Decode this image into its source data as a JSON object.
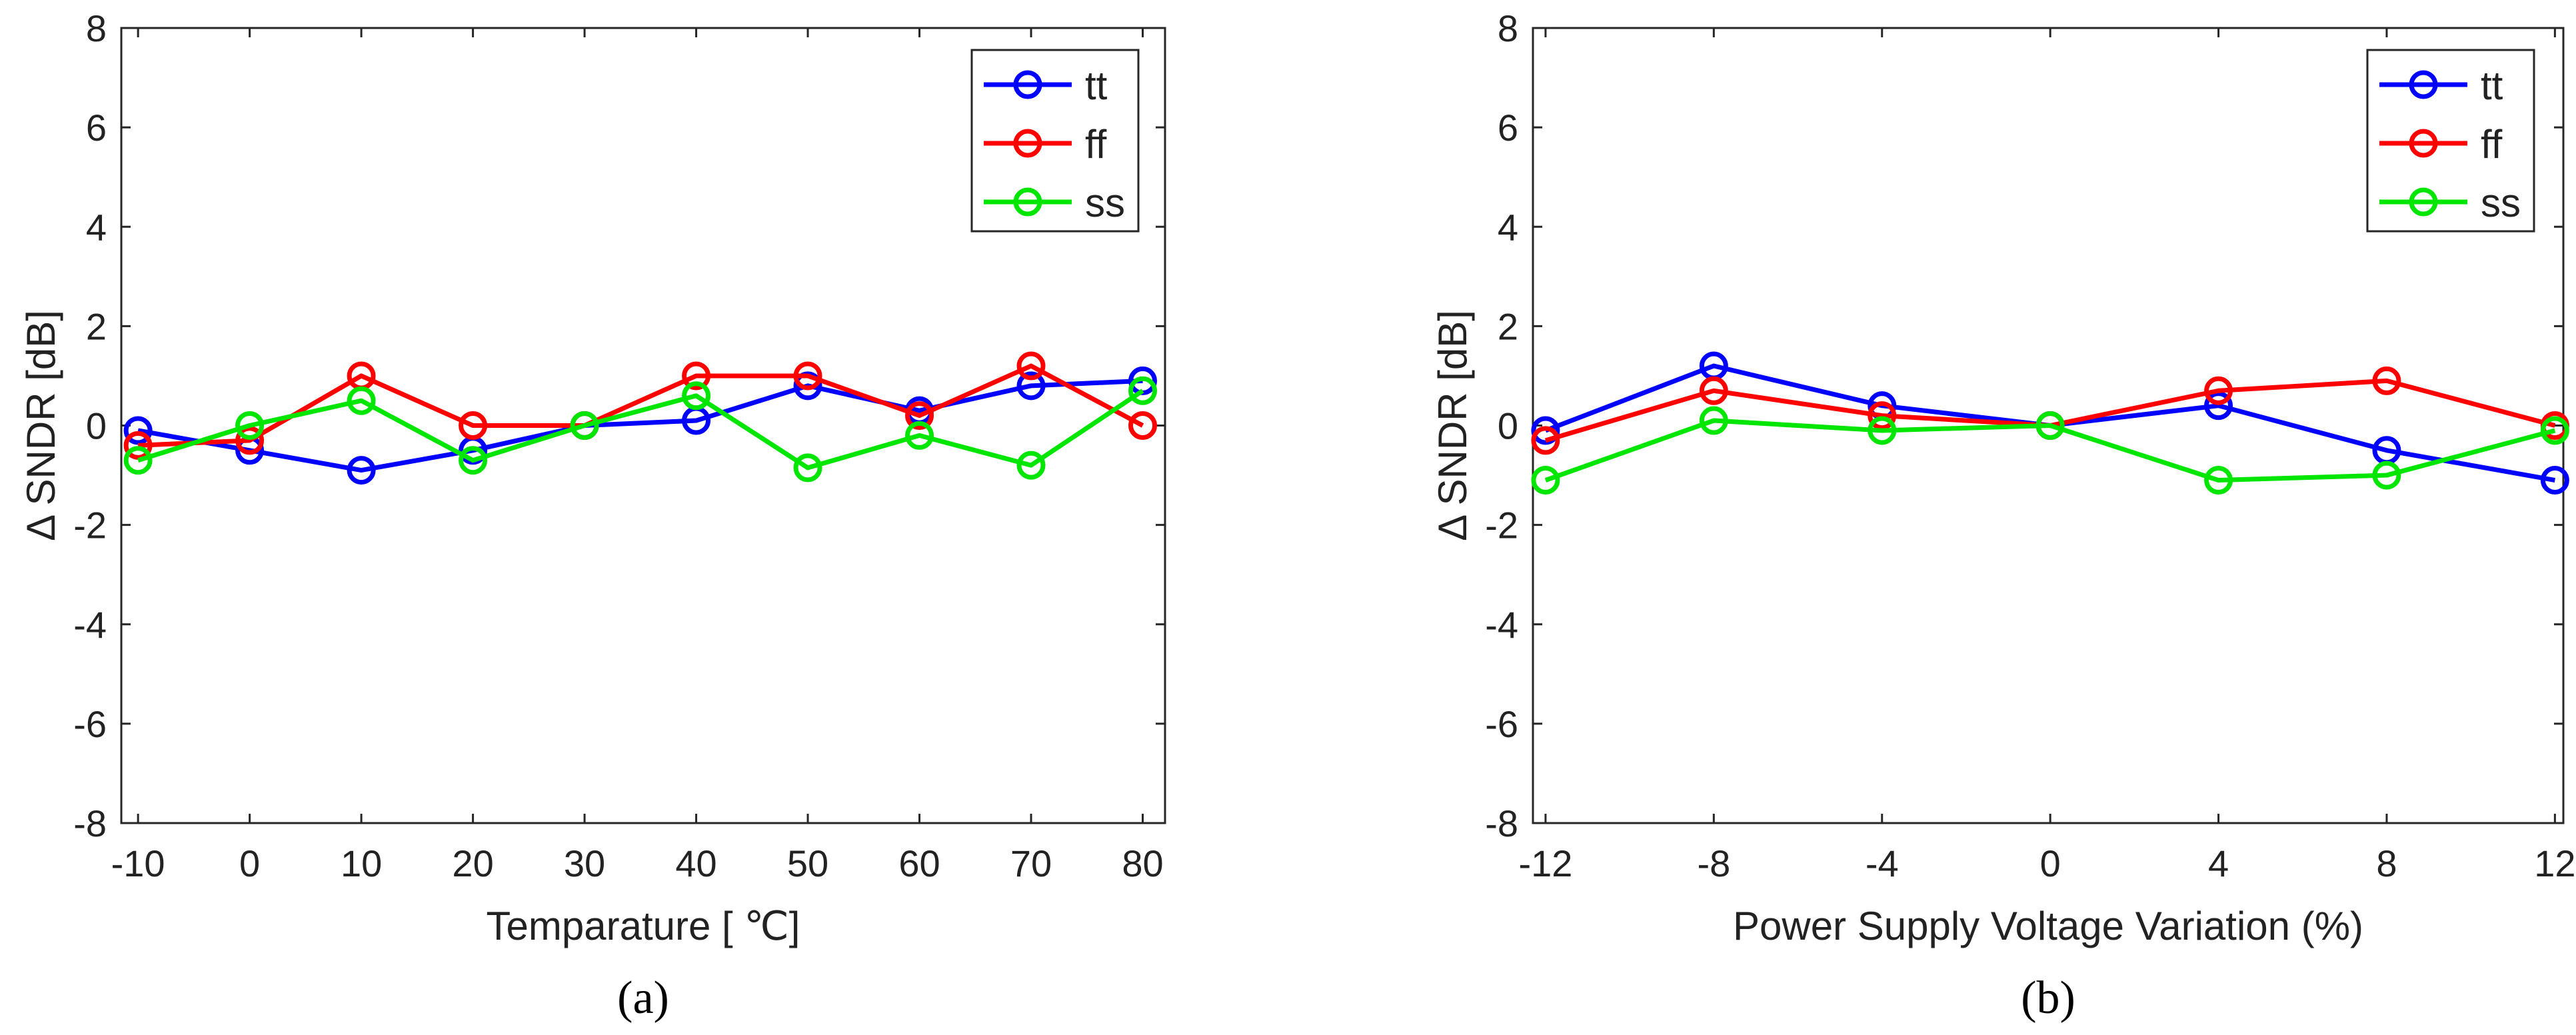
{
  "chart_data": [
    {
      "type": "line",
      "panel_label": "(a)",
      "xlabel": "Temparature [ ℃]",
      "ylabel": "Δ SNDR [dB]",
      "x": [
        -10,
        0,
        10,
        20,
        30,
        40,
        50,
        60,
        70,
        80
      ],
      "xticks": [
        -10,
        0,
        10,
        20,
        30,
        40,
        50,
        60,
        70,
        80
      ],
      "xlim": [
        -11.5,
        82
      ],
      "ylim": [
        -8,
        8
      ],
      "yticks": [
        -8,
        -6,
        -4,
        -2,
        0,
        2,
        4,
        6,
        8
      ],
      "grid": false,
      "legend_position": "top-right",
      "marker": "open-circle",
      "series": [
        {
          "name": "tt",
          "color": "#0000ff",
          "values": [
            -0.1,
            -0.5,
            -0.9,
            -0.5,
            0.0,
            0.1,
            0.8,
            0.3,
            0.8,
            0.9
          ]
        },
        {
          "name": "ff",
          "color": "#ff0000",
          "values": [
            -0.4,
            -0.3,
            1.0,
            0.0,
            0.0,
            1.0,
            1.0,
            0.2,
            1.2,
            0.0
          ]
        },
        {
          "name": "ss",
          "color": "#00e600",
          "values": [
            -0.7,
            0.0,
            0.5,
            -0.7,
            0.0,
            0.6,
            -0.85,
            -0.2,
            -0.8,
            0.7
          ]
        }
      ]
    },
    {
      "type": "line",
      "panel_label": "(b)",
      "xlabel": "Power Supply Voltage Variation (%)",
      "ylabel": "Δ SNDR [dB]",
      "x": [
        -12,
        -8,
        -4,
        0,
        4,
        8,
        12
      ],
      "xticks": [
        -12,
        -8,
        -4,
        0,
        4,
        8,
        12
      ],
      "xlim": [
        -12.3,
        12.2
      ],
      "ylim": [
        -8,
        8
      ],
      "yticks": [
        -8,
        -6,
        -4,
        -2,
        0,
        2,
        4,
        6,
        8
      ],
      "grid": false,
      "legend_position": "top-right",
      "marker": "open-circle",
      "series": [
        {
          "name": "tt",
          "color": "#0000ff",
          "values": [
            -0.1,
            1.2,
            0.4,
            0.0,
            0.4,
            -0.5,
            -1.1
          ]
        },
        {
          "name": "ff",
          "color": "#ff0000",
          "values": [
            -0.3,
            0.7,
            0.2,
            0.0,
            0.7,
            0.9,
            0.0
          ]
        },
        {
          "name": "ss",
          "color": "#00e600",
          "values": [
            -1.1,
            0.1,
            -0.1,
            0.0,
            -1.1,
            -1.0,
            -0.1
          ]
        }
      ]
    }
  ]
}
